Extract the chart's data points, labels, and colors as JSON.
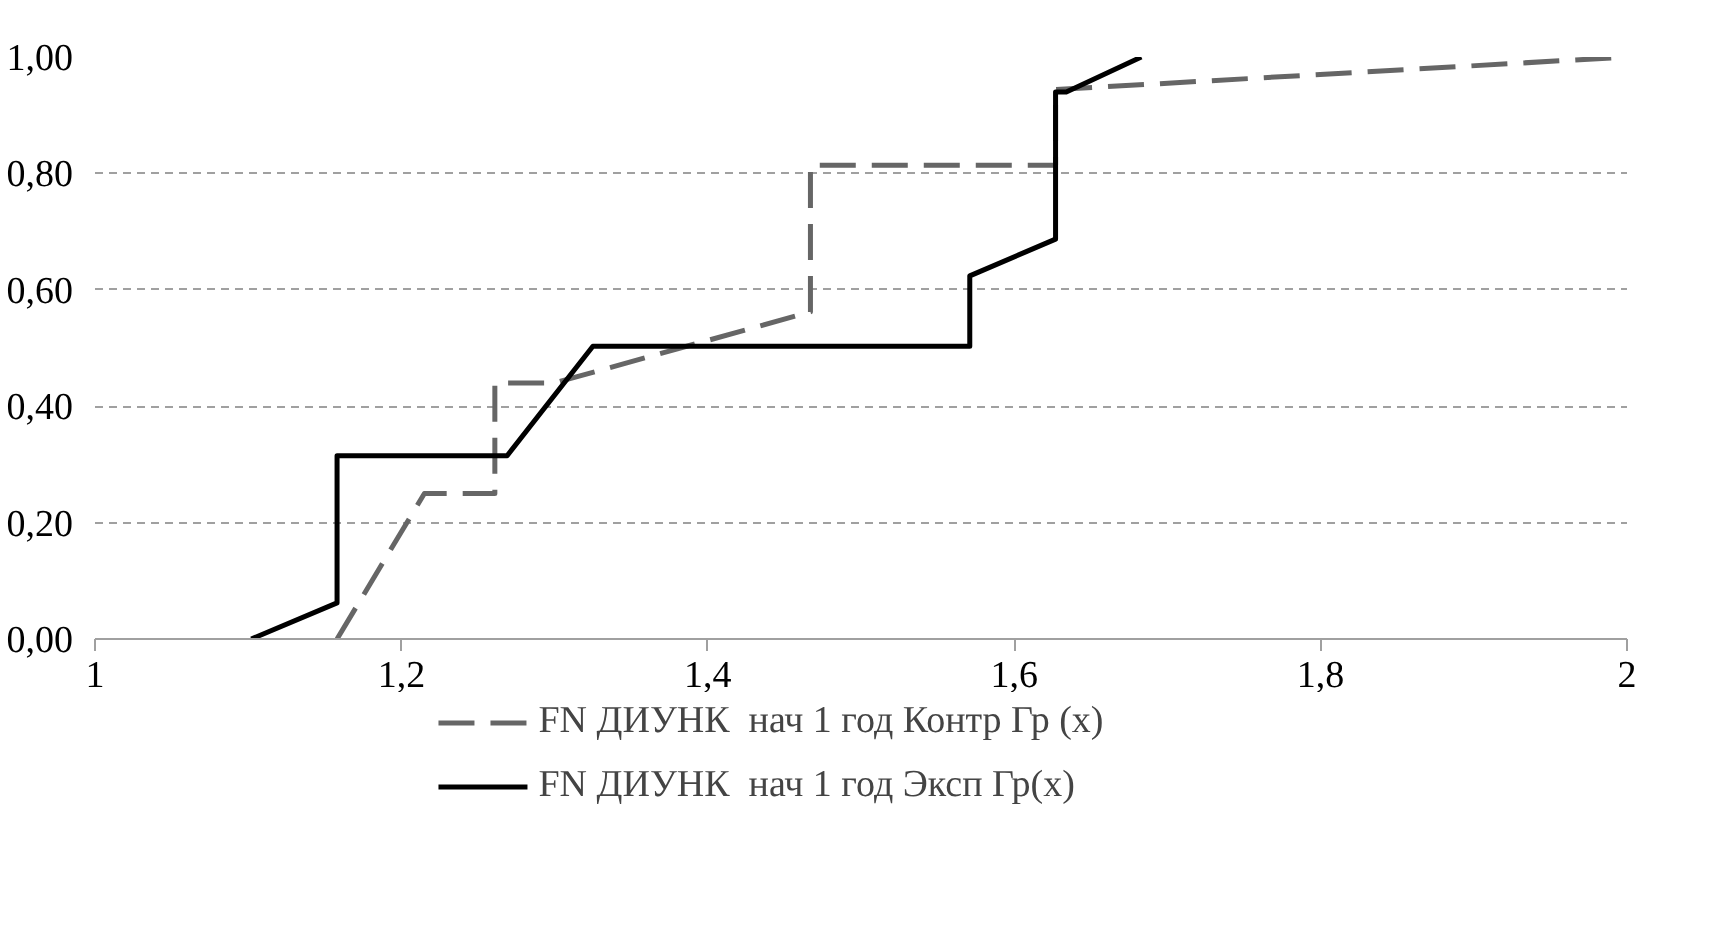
{
  "chart_data": {
    "type": "line",
    "series": [
      {
        "name": "FN ДИУНК  нач 1 год Контр Гр (x)",
        "color": "#666666",
        "line_style": "dashed",
        "x": [
          1.158,
          1.215,
          1.261,
          1.261,
          1.3,
          1.467,
          1.467,
          1.627,
          1.627,
          2.0
        ],
        "values": [
          0,
          0.25,
          0.25,
          0.44,
          0.44,
          0.562,
          0.814,
          0.814,
          0.944,
          1.0
        ]
      },
      {
        "name": "FN ДИУНК  нач 1 год Эксп Гр(x)",
        "color": "#000000",
        "line_style": "solid",
        "x": [
          1.102,
          1.158,
          1.158,
          1.269,
          1.325,
          1.571,
          1.571,
          1.627,
          1.627,
          1.634,
          1.683
        ],
        "values": [
          0,
          0.062,
          0.315,
          0.315,
          0.503,
          0.503,
          0.624,
          0.687,
          0.94,
          0.94,
          1.0
        ]
      }
    ],
    "xlim": [
      1,
      2
    ],
    "ylim": [
      0,
      1
    ],
    "xticks": [
      1,
      {
        "value": 1.2,
        "label": "1,2"
      },
      {
        "value": 1.4,
        "label": "1,4"
      },
      {
        "value": 1.6,
        "label": "1,6"
      },
      {
        "value": 1.8,
        "label": "1,8"
      },
      2
    ],
    "yticks": [
      {
        "value": 0,
        "label": "0,00"
      },
      {
        "value": 0.2,
        "label": "0,20"
      },
      {
        "value": 0.4,
        "label": "0,40"
      },
      {
        "value": 0.6,
        "label": "0,60"
      },
      {
        "value": 0.8,
        "label": "0,80"
      },
      {
        "value": 1,
        "label": "1,00"
      }
    ],
    "grid": "y",
    "legend": "bottom",
    "marker": "none"
  }
}
